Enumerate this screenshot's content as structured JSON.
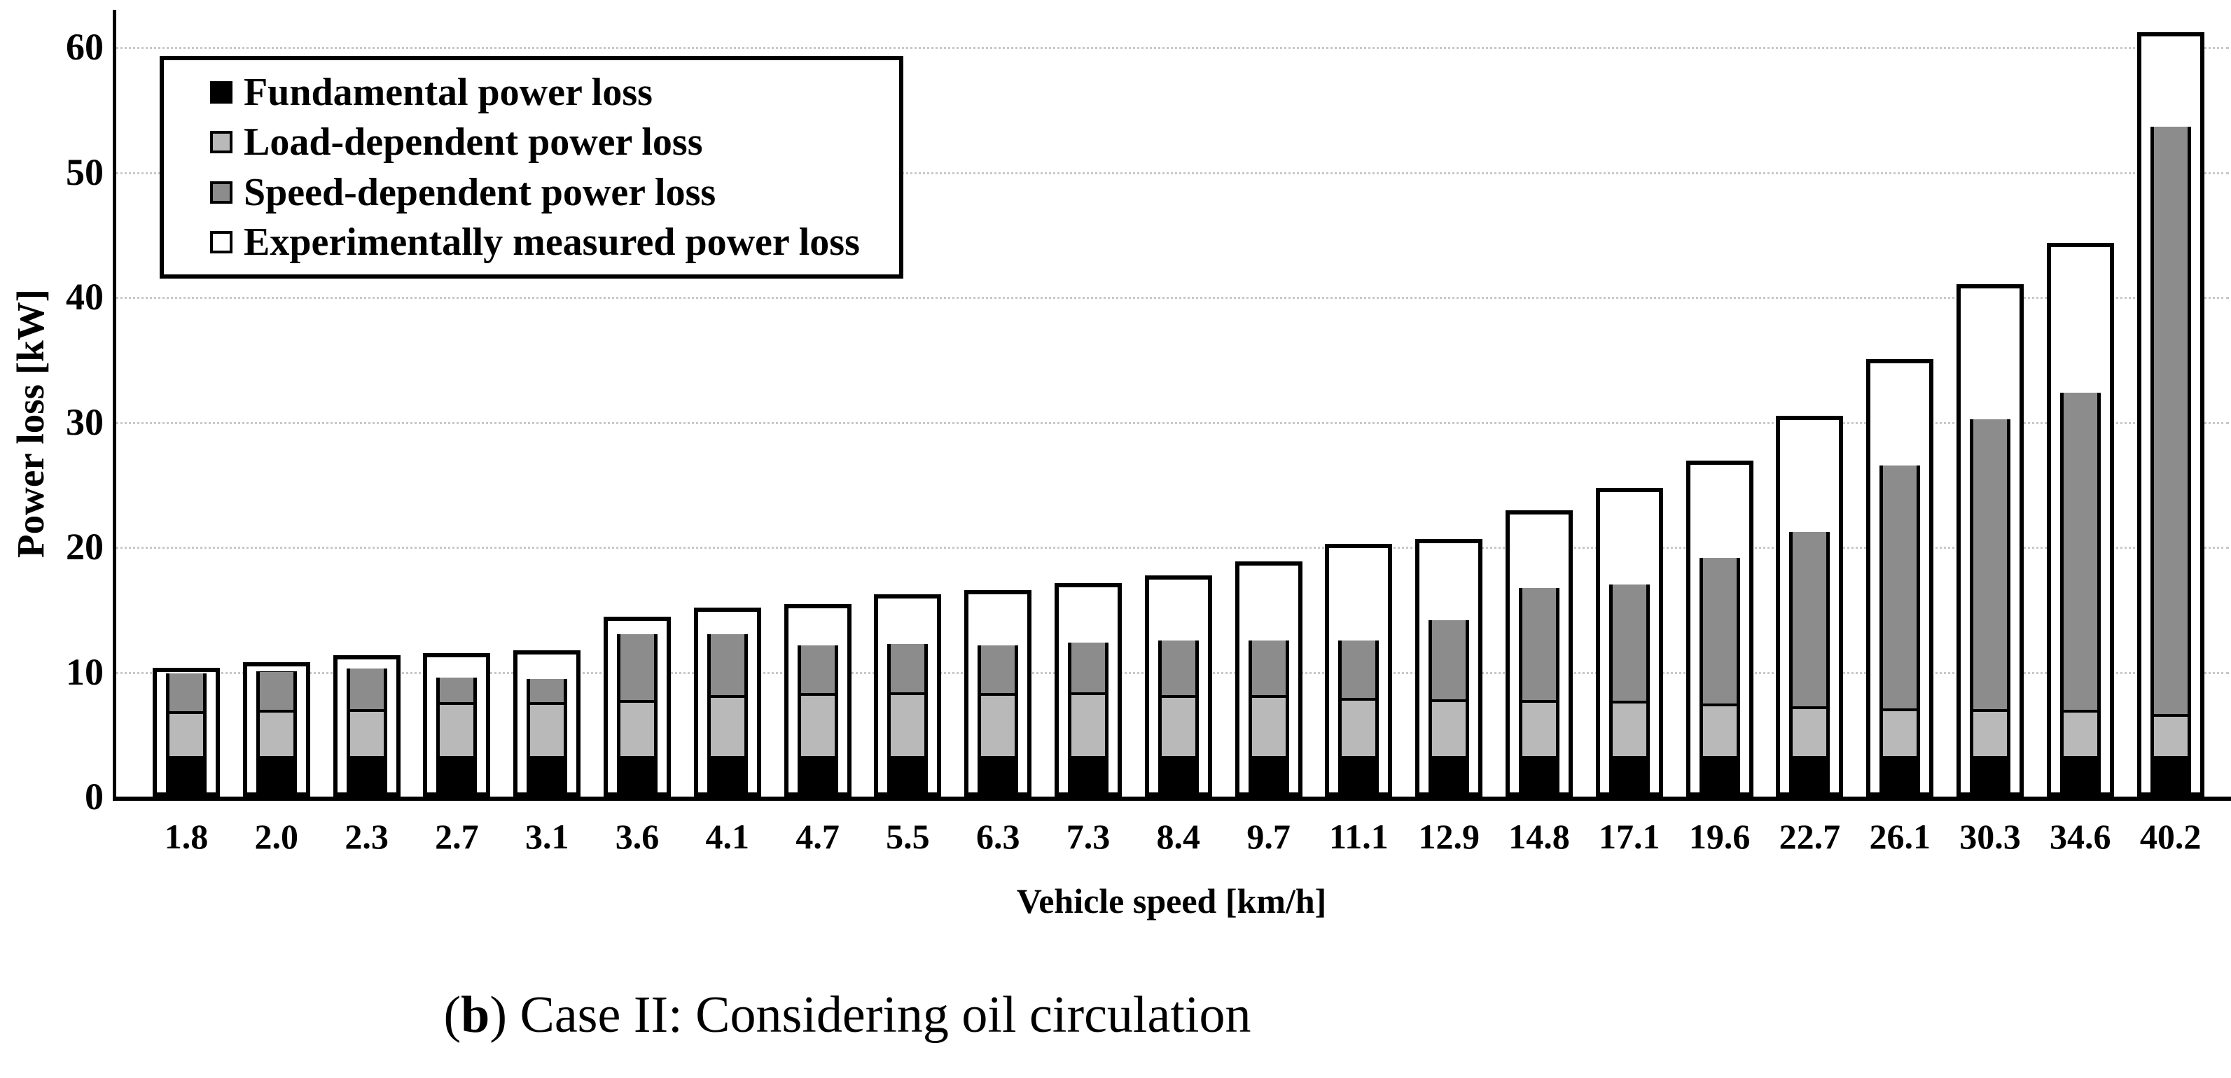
{
  "caption": {
    "open": "(",
    "bold_letter": "b",
    "rest": ") Case II: Considering oil circulation"
  },
  "legend": {
    "items": [
      {
        "label": "Fundamental power loss",
        "swatch": "#000000"
      },
      {
        "label": "Load-dependent power loss",
        "swatch": "#b9b9b9"
      },
      {
        "label": "Speed-dependent power loss",
        "swatch": "#8c8c8c"
      },
      {
        "label": "Experimentally measured power loss",
        "swatch": "#ffffff"
      }
    ]
  },
  "colors": {
    "fundamental": "#000000",
    "load": "#b9b9b9",
    "speed": "#8c8c8c",
    "experimental_fill": "#ffffff",
    "outline": "#000000",
    "gridline": "#c8c8c8"
  },
  "chart_data": {
    "type": "bar",
    "stacked": true,
    "title": "",
    "xlabel": "Vehicle speed [km/h]",
    "ylabel": "Power loss [kW]",
    "ylim": [
      0,
      62
    ],
    "yticks": [
      0,
      10,
      20,
      30,
      40,
      50,
      60
    ],
    "grid": "horizontal dotted, legend top-left, no right/top axis",
    "categories": [
      "1.8",
      "2.0",
      "2.3",
      "2.7",
      "3.1",
      "3.6",
      "4.1",
      "4.7",
      "5.5",
      "6.3",
      "7.3",
      "8.4",
      "9.7",
      "11.1",
      "12.9",
      "14.8",
      "17.1",
      "19.6",
      "22.7",
      "26.1",
      "30.3",
      "34.6",
      "40.2"
    ],
    "series": [
      {
        "name": "Fundamental power loss",
        "role": "stack-bottom",
        "color": "#000000",
        "values": [
          3.0,
          3.0,
          3.0,
          3.0,
          3.0,
          3.0,
          3.0,
          3.0,
          3.0,
          3.0,
          3.0,
          3.0,
          3.0,
          3.0,
          3.0,
          3.0,
          3.0,
          3.0,
          3.0,
          3.0,
          3.0,
          3.0,
          3.0
        ]
      },
      {
        "name": "Load-dependent power loss",
        "role": "stack-middle",
        "color": "#b9b9b9",
        "values": [
          3.6,
          3.7,
          3.8,
          4.35,
          4.35,
          4.5,
          4.9,
          5.05,
          5.15,
          5.05,
          5.1,
          4.9,
          4.9,
          4.7,
          4.55,
          4.5,
          4.45,
          4.2,
          4.0,
          3.85,
          3.8,
          3.7,
          3.4
        ]
      },
      {
        "name": "Speed-dependent power loss",
        "role": "stack-top",
        "color": "#8c8c8c",
        "values": [
          3.25,
          3.3,
          3.45,
          2.15,
          2.05,
          5.5,
          5.1,
          4.05,
          4.05,
          4.05,
          4.2,
          4.6,
          4.6,
          4.8,
          6.55,
          9.2,
          9.55,
          11.9,
          14.2,
          19.65,
          23.4,
          25.65,
          47.2
        ]
      },
      {
        "name": "Experimentally measured power loss",
        "role": "outline-overlay",
        "color": "#ffffff",
        "values": [
          10.3,
          10.75,
          11.3,
          11.5,
          11.7,
          14.4,
          15.1,
          15.4,
          16.2,
          16.5,
          17.1,
          17.7,
          18.8,
          20.2,
          20.6,
          22.9,
          24.7,
          26.9,
          30.5,
          35.0,
          41.0,
          44.3,
          61.2
        ]
      }
    ]
  }
}
